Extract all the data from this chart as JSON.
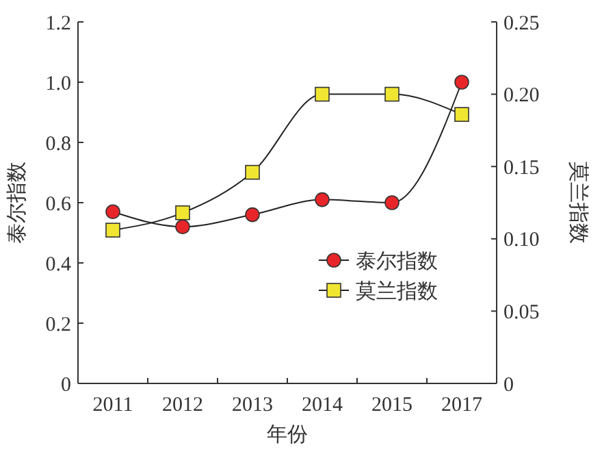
{
  "chart_data": {
    "type": "line",
    "xlabel": "年份",
    "ylabel": "泰尔指数",
    "y2label": "莫兰指数",
    "categories": [
      "2011",
      "2012",
      "2013",
      "2014",
      "2015",
      "2017"
    ],
    "ylim": [
      0,
      1.2
    ],
    "yticks": [
      0,
      0.2,
      0.4,
      0.6,
      0.8,
      {
        "value": 1,
        "label": "1.0"
      },
      1.2
    ],
    "y2lim": [
      0,
      0.25
    ],
    "y2ticks": [
      0,
      0.05,
      {
        "value": 0.1,
        "label": "0.10"
      },
      0.15,
      {
        "value": 0.2,
        "label": "0.20"
      },
      0.25
    ],
    "grid": false,
    "legend": "right",
    "line_style": "solid",
    "series": [
      {
        "name": "泰尔指数",
        "color": "#e8262a",
        "marker": "circle",
        "values": [
          0.57,
          0.52,
          0.56,
          0.61,
          0.6,
          1.0
        ]
      },
      {
        "name": "莫兰指数",
        "color": "#f0e632",
        "marker": "square",
        "axis": "y2",
        "values": [
          0.106,
          0.118,
          0.146,
          0.2,
          0.2,
          0.186
        ]
      }
    ]
  }
}
